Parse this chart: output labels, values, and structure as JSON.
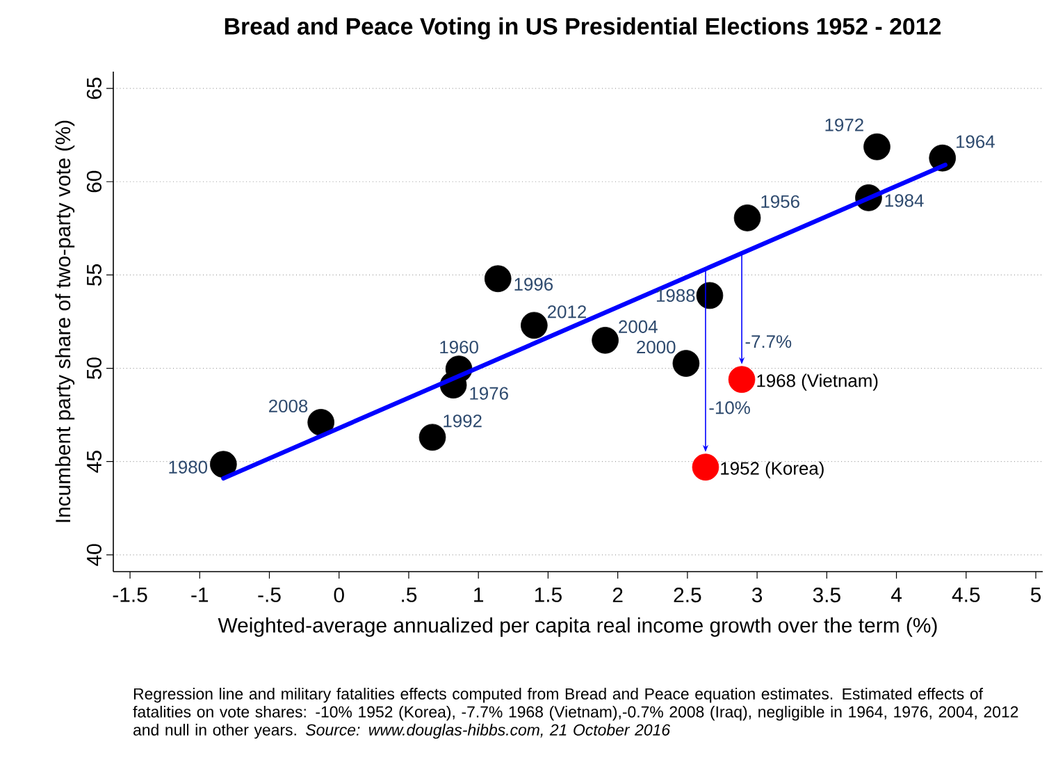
{
  "chart_data": {
    "type": "scatter",
    "title": "Bread and Peace Voting in US Presidential Elections 1952 - 2012",
    "xlabel": "Weighted-average annualized per capita real income growth over the term (%)",
    "ylabel": "Incumbent party share of two-party vote (%)",
    "xlim": [
      -1.62,
      5.05
    ],
    "ylim": [
      39.1,
      65.9
    ],
    "xticks": [
      -1.5,
      -1,
      {
        "value": -0.5,
        "label": "-.5"
      },
      0,
      {
        "value": 0.5,
        "label": ".5"
      },
      1,
      1.5,
      2,
      2.5,
      3,
      3.5,
      4,
      4.5,
      5
    ],
    "yticks": [
      40,
      45,
      50,
      55,
      60,
      65
    ],
    "grid": "y",
    "series": [
      {
        "type": "line",
        "marker": "none",
        "color": "#0000ff",
        "x": [
          -0.83,
          4.35
        ],
        "values": [
          44.1,
          60.9
        ]
      },
      {
        "marker": "circle",
        "color": "#000000",
        "x": [
          -0.83,
          -0.13,
          0.67,
          0.82,
          0.86,
          1.14,
          1.4,
          1.91,
          2.49,
          2.66,
          2.93,
          3.8,
          3.86,
          4.33
        ],
        "values": [
          44.85,
          47.1,
          46.3,
          49.1,
          49.96,
          54.8,
          52.3,
          51.5,
          50.26,
          53.9,
          58.06,
          59.14,
          61.87,
          61.27
        ]
      },
      {
        "marker": "circle",
        "color": "#ff0000",
        "x": [
          2.63,
          2.89
        ],
        "values": [
          44.7,
          49.4
        ]
      }
    ],
    "annotations": [
      {
        "text": "1980",
        "x": -0.83,
        "y": 44.85
      },
      {
        "text": "2008",
        "x": -0.13,
        "y": 47.1
      },
      {
        "text": "1992",
        "x": 0.67,
        "y": 46.3
      },
      {
        "text": "1976",
        "x": 0.82,
        "y": 49.1
      },
      {
        "text": "1960",
        "x": 0.86,
        "y": 49.96
      },
      {
        "text": "1996",
        "x": 1.14,
        "y": 54.8
      },
      {
        "text": "2012",
        "x": 1.4,
        "y": 52.3
      },
      {
        "text": "2004",
        "x": 1.91,
        "y": 51.5
      },
      {
        "text": "2000",
        "x": 2.49,
        "y": 50.26
      },
      {
        "text": "1988",
        "x": 2.66,
        "y": 53.9
      },
      {
        "text": "1956",
        "x": 2.93,
        "y": 58.06
      },
      {
        "text": "1984",
        "x": 3.8,
        "y": 59.14
      },
      {
        "text": "1972",
        "x": 3.86,
        "y": 61.87
      },
      {
        "text": "1964",
        "x": 4.33,
        "y": 61.27
      },
      {
        "text": "1952 (Korea)",
        "x": 2.63,
        "y": 44.7
      },
      {
        "text": "1968 (Vietnam)",
        "x": 2.89,
        "y": 49.4
      },
      {
        "text": "-10%",
        "x": 2.63,
        "y": 44.7
      },
      {
        "text": "-7.7%",
        "x": 2.89,
        "y": 49.4
      },
      "Regression line and military fatalities effects computed from Bread and Peace equation estimates. Estimated effects of fatalities on vote shares: -10% 1952 (Korea), -7.7% 1968 (Vietnam),-0.7% 2008 (Iraq), negligible in 1964, 1976, 2004, 2012 and null in other years. *Source: www.douglas-hibbs.com, 21 October 2016*"
    ]
  }
}
